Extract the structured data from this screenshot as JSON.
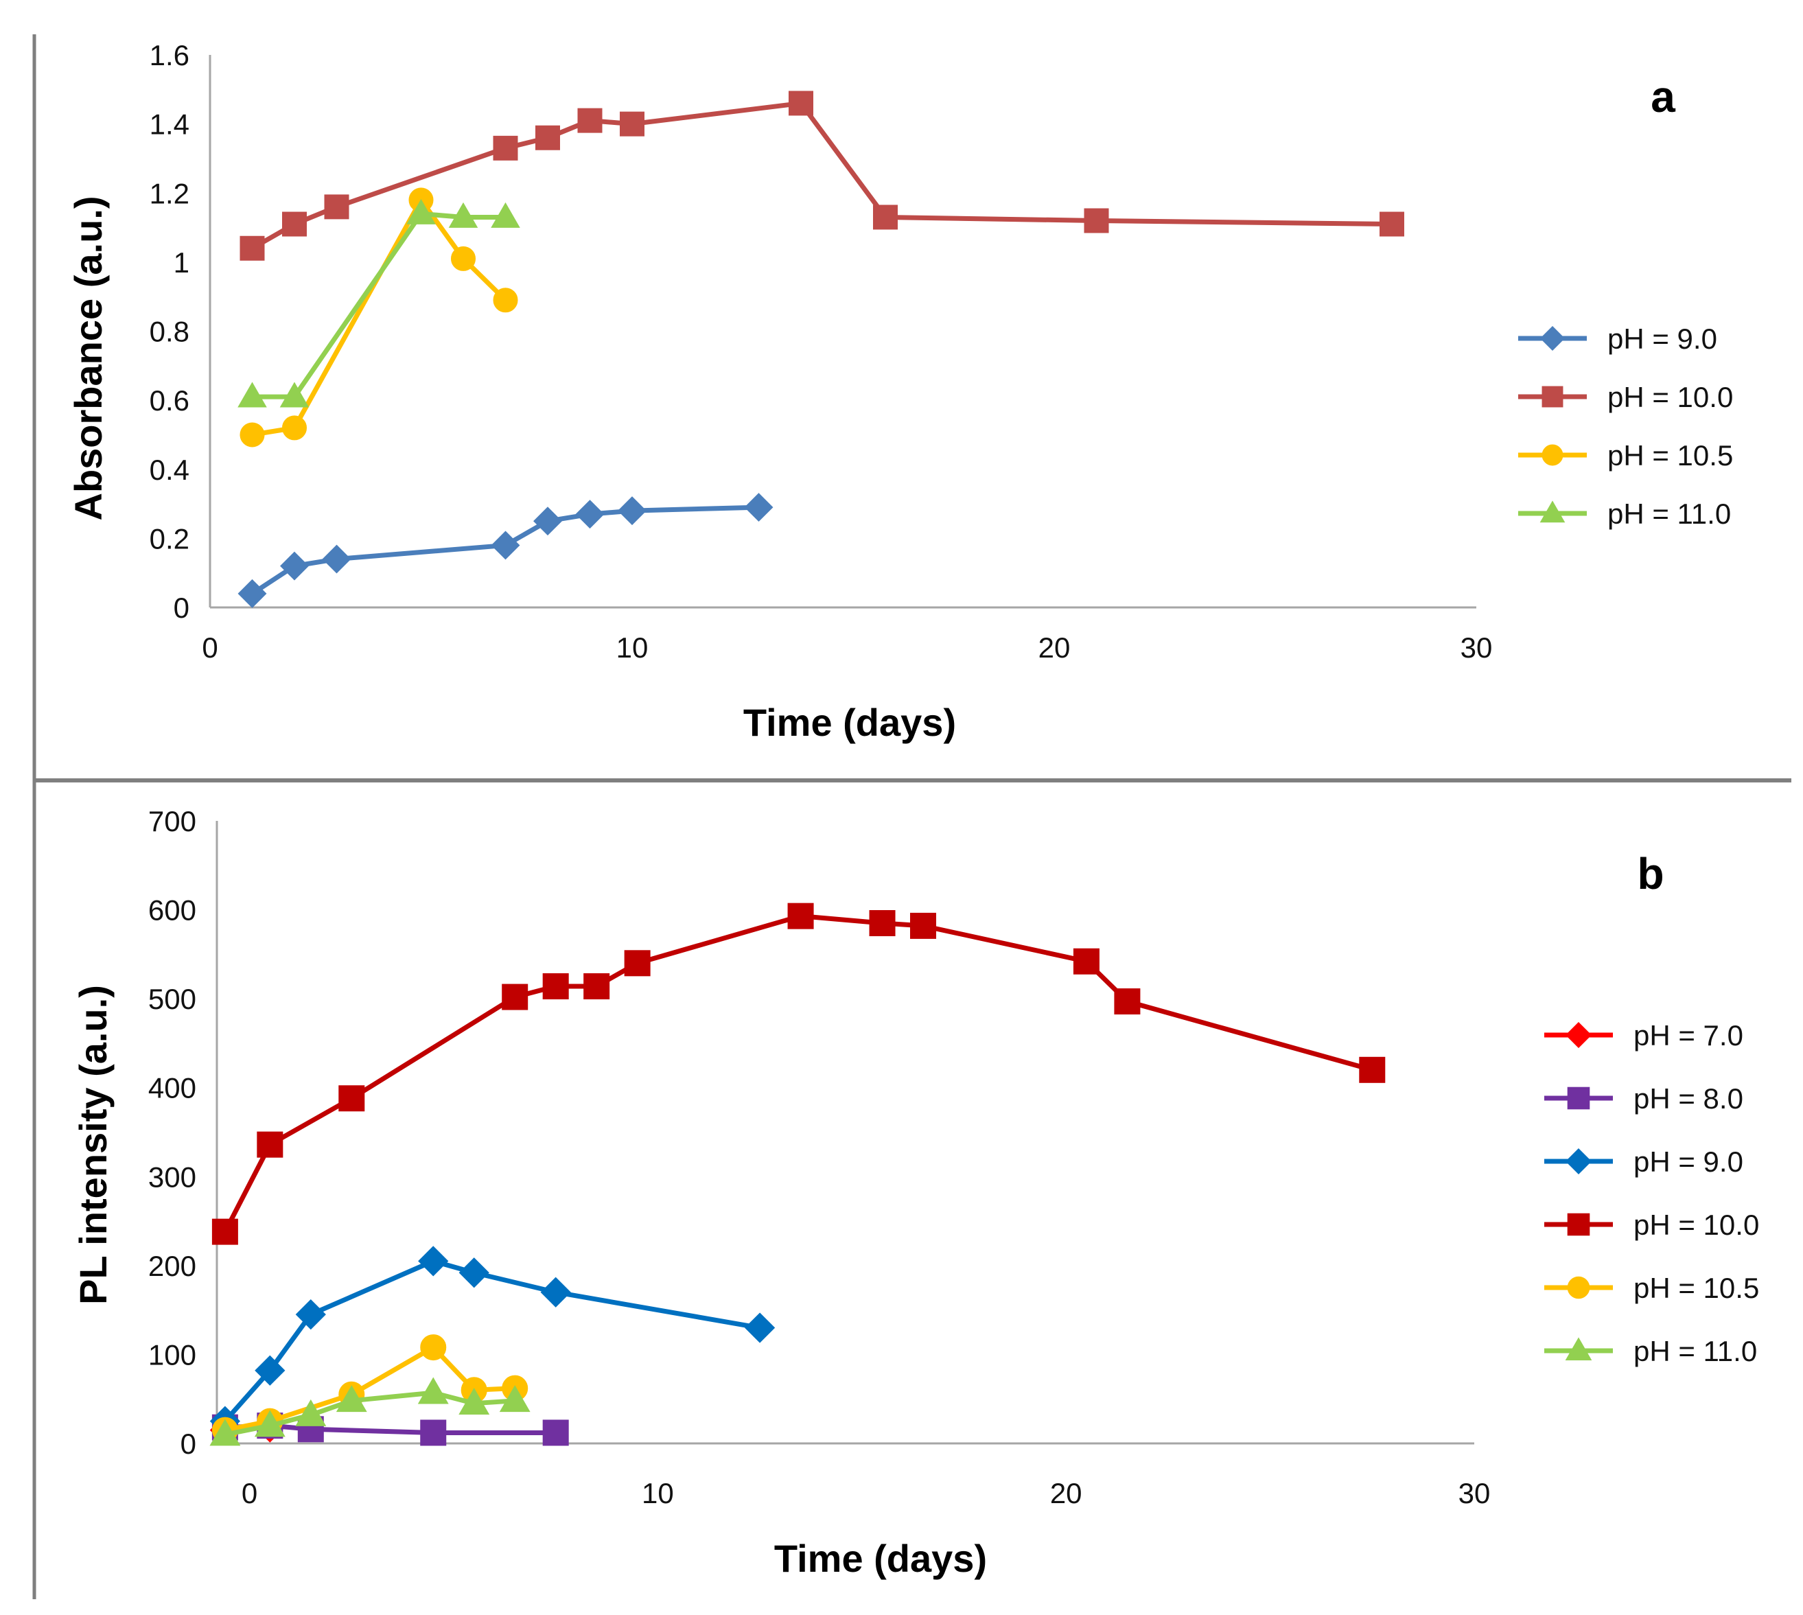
{
  "chart_data": [
    {
      "id": "a",
      "type": "line",
      "panel_label": "a",
      "title": "",
      "xlabel": "Time (days)",
      "ylabel": "Absorbance (a.u.)",
      "xlim": [
        0,
        30
      ],
      "ylim": [
        0,
        1.6
      ],
      "x_ticks": [
        0,
        10,
        20,
        30
      ],
      "x_tick_labels": [
        "0",
        "10",
        "20",
        "30"
      ],
      "y_ticks": [
        0,
        0.2,
        0.4,
        0.6,
        0.8,
        1,
        1.2,
        1.4,
        1.6
      ],
      "y_tick_labels": [
        "0",
        "0.2",
        "0.4",
        "0.6",
        "0.8",
        "1",
        "1.2",
        "1.4",
        "1.6"
      ],
      "grid": false,
      "legend_position": "right",
      "series": [
        {
          "name": "pH = 9.0",
          "color": "#4a7ebb",
          "marker": "diamond",
          "x": [
            1,
            2,
            3,
            7,
            8,
            9,
            10,
            13
          ],
          "y": [
            0.04,
            0.12,
            0.14,
            0.18,
            0.25,
            0.27,
            0.28,
            0.29
          ]
        },
        {
          "name": "pH = 10.0",
          "color": "#be4b48",
          "marker": "square",
          "x": [
            1,
            2,
            3,
            7,
            8,
            9,
            10,
            14,
            16,
            21,
            28
          ],
          "y": [
            1.04,
            1.11,
            1.16,
            1.33,
            1.36,
            1.41,
            1.4,
            1.46,
            1.13,
            1.12,
            1.11
          ]
        },
        {
          "name": "pH = 10.5",
          "color": "#ffc000",
          "marker": "circle",
          "x": [
            1,
            2,
            5,
            6,
            7
          ],
          "y": [
            0.5,
            0.52,
            1.18,
            1.01,
            0.89
          ]
        },
        {
          "name": "pH = 11.0",
          "color": "#92d050",
          "marker": "triangle",
          "x": [
            1,
            2,
            5,
            6,
            7
          ],
          "y": [
            0.61,
            0.61,
            1.14,
            1.13,
            1.13
          ]
        }
      ]
    },
    {
      "id": "b",
      "type": "line",
      "panel_label": "b",
      "title": "",
      "xlabel": "Time (days)",
      "ylabel": "PL intensity (a.u.)",
      "xlim": [
        -0.8,
        30
      ],
      "ylim": [
        0,
        700
      ],
      "x_ticks": [
        0,
        10,
        20,
        30
      ],
      "x_tick_labels": [
        "0",
        "10",
        "20",
        "30"
      ],
      "y_ticks": [
        0,
        100,
        200,
        300,
        400,
        500,
        600,
        700
      ],
      "y_tick_labels": [
        "0",
        "100",
        "200",
        "300",
        "400",
        "500",
        "600",
        "700"
      ],
      "grid": false,
      "legend_position": "right",
      "series": [
        {
          "name": "pH = 7.0",
          "color": "#ff0000",
          "marker": "diamond",
          "x": [
            -0.6,
            0.5
          ],
          "y": [
            15,
            18
          ]
        },
        {
          "name": "pH = 8.0",
          "color": "#7030a0",
          "marker": "square",
          "x": [
            -0.6,
            0.5,
            1.5,
            4.5,
            7.5
          ],
          "y": [
            18,
            20,
            16,
            12,
            12
          ]
        },
        {
          "name": "pH = 9.0",
          "color": "#0070c0",
          "marker": "diamond",
          "x": [
            -0.6,
            0.5,
            1.5,
            4.5,
            5.5,
            7.5,
            12.5
          ],
          "y": [
            25,
            82,
            145,
            205,
            192,
            170,
            130
          ]
        },
        {
          "name": "pH = 10.0",
          "color": "#c00000",
          "marker": "square",
          "x": [
            -0.6,
            0.5,
            2.5,
            6.5,
            7.5,
            8.5,
            9.5,
            13.5,
            15.5,
            16.5,
            20.5,
            21.5,
            27.5
          ],
          "y": [
            238,
            336,
            388,
            502,
            514,
            514,
            540,
            593,
            585,
            582,
            542,
            497,
            420
          ]
        },
        {
          "name": "pH = 10.5",
          "color": "#ffc000",
          "marker": "circle",
          "x": [
            -0.6,
            0.5,
            2.5,
            4.5,
            5.5,
            6.5
          ],
          "y": [
            15,
            25,
            55,
            108,
            60,
            62
          ]
        },
        {
          "name": "pH = 11.0",
          "color": "#92d050",
          "marker": "triangle",
          "x": [
            -0.6,
            0.5,
            1.5,
            2.5,
            4.5,
            5.5,
            6.5
          ],
          "y": [
            10,
            20,
            32,
            48,
            57,
            45,
            48
          ]
        }
      ]
    }
  ]
}
